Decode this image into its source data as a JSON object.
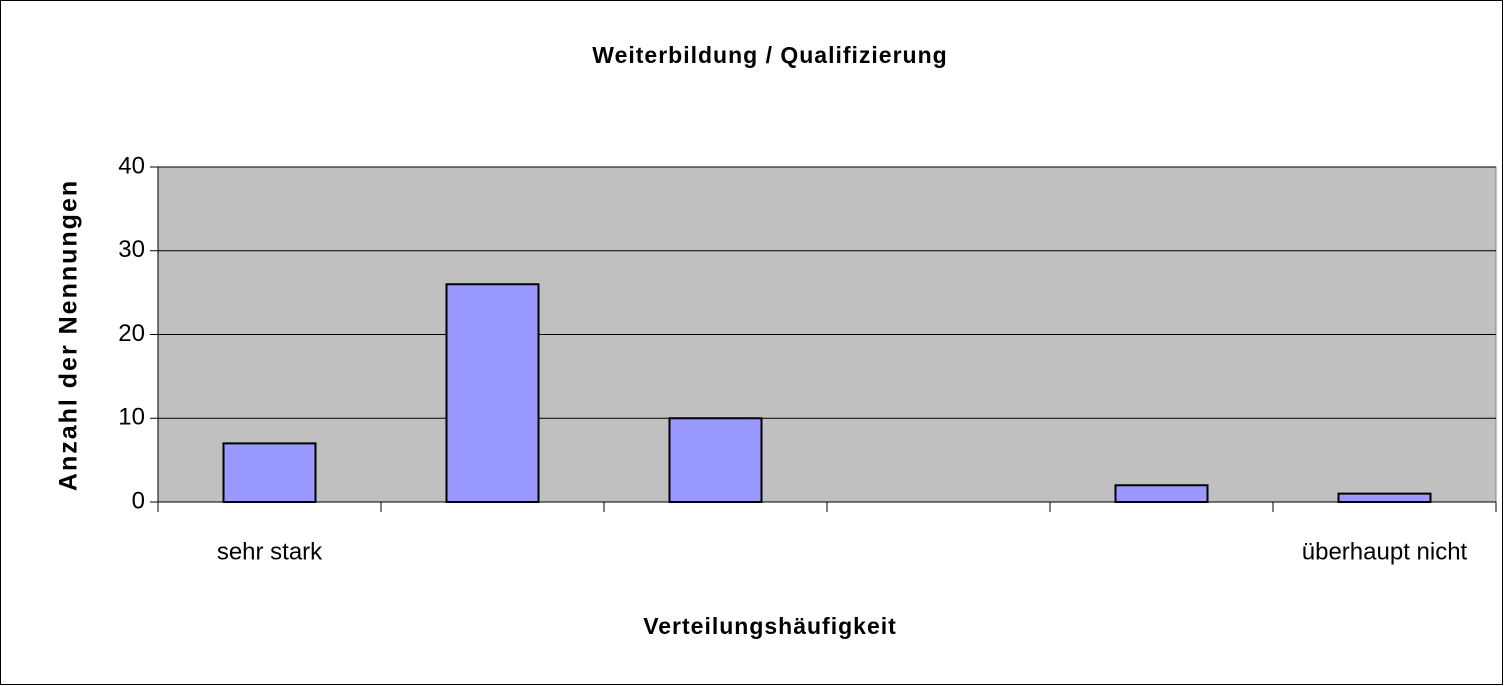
{
  "chart_data": {
    "type": "bar",
    "title": "Weiterbildung / Qualifizierung",
    "x_label": "Verteilungshäufigkeit",
    "y_label": "Anzahl der Nennungen",
    "categories": [
      "sehr stark",
      null,
      null,
      null,
      null,
      "überhaupt nicht"
    ],
    "values": [
      7,
      26,
      10,
      0,
      2,
      1
    ],
    "color": "#9999ff",
    "plot_background": "#c0c0c0",
    "ylim": [
      0,
      40
    ],
    "yticks": [
      0,
      10,
      20,
      30,
      40
    ],
    "grid": true
  }
}
